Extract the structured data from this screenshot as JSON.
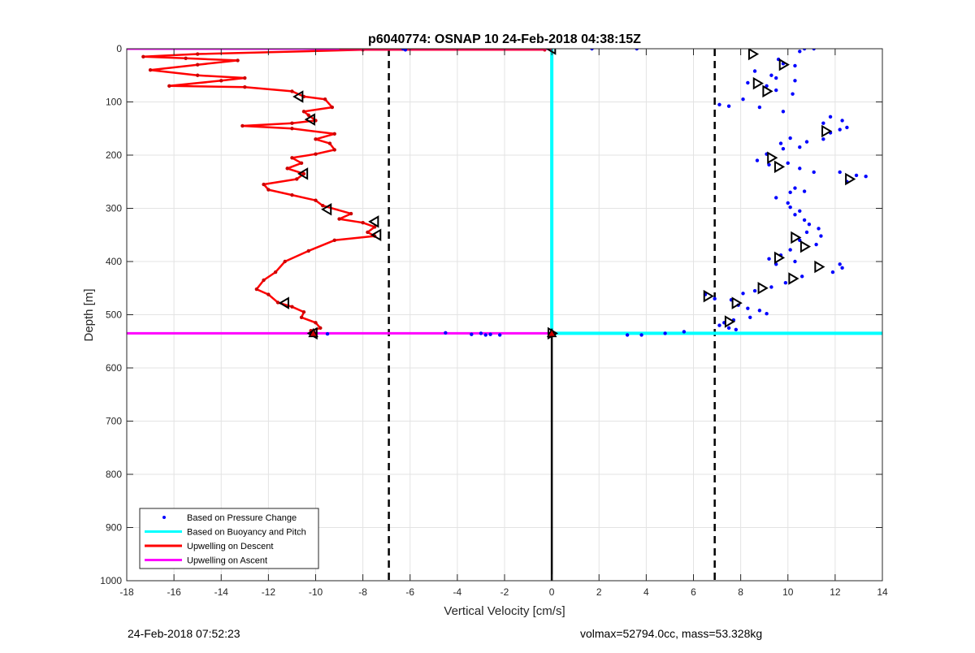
{
  "chart_data": {
    "type": "line",
    "title": "p6040774: OSNAP 10 24-Feb-2018 04:38:15Z",
    "xlabel": "Vertical Velocity [cm/s]",
    "ylabel": "Depth [m]",
    "xlim": [
      -18,
      14
    ],
    "ylim": [
      0,
      1000
    ],
    "y_reversed": true,
    "grid": true,
    "x_ticks": [
      -18,
      -16,
      -14,
      -12,
      -10,
      -8,
      -6,
      -4,
      -2,
      0,
      2,
      4,
      6,
      8,
      10,
      12,
      14
    ],
    "y_ticks": [
      0,
      100,
      200,
      300,
      400,
      500,
      600,
      700,
      800,
      900,
      1000
    ],
    "legend_placement": "bottom-left",
    "legend": [
      {
        "name": "Based on Pressure Change",
        "color": "#0000ff",
        "style": "dot"
      },
      {
        "name": "Based on Buoyancy and Pitch",
        "color": "#00ffff",
        "style": "line"
      },
      {
        "name": "Upwelling on Descent",
        "color": "#ff0000",
        "style": "line"
      },
      {
        "name": "Upwelling on Ascent",
        "color": "#ff00ff",
        "style": "line"
      }
    ],
    "reference_lines": {
      "dashed_x": [
        -6.9,
        6.9
      ],
      "zero_x": 0,
      "max_depth": 535
    },
    "upwelling_descent": {
      "color": "#ff0000",
      "points": [
        [
          -0.3,
          2
        ],
        [
          -8,
          2
        ],
        [
          -15,
          10
        ],
        [
          -17.3,
          15
        ],
        [
          -15.5,
          18
        ],
        [
          -13.3,
          22
        ],
        [
          -15,
          30
        ],
        [
          -17,
          40
        ],
        [
          -15,
          50
        ],
        [
          -13,
          55
        ],
        [
          -14,
          60
        ],
        [
          -16.2,
          70
        ],
        [
          -13,
          72
        ],
        [
          -11,
          80
        ],
        [
          -10.5,
          90
        ],
        [
          -9.6,
          95
        ],
        [
          -9.3,
          110
        ],
        [
          -10.5,
          118
        ],
        [
          -10.3,
          125
        ],
        [
          -10,
          135
        ],
        [
          -11,
          140
        ],
        [
          -13.1,
          145
        ],
        [
          -11,
          150
        ],
        [
          -9.2,
          160
        ],
        [
          -10,
          170
        ],
        [
          -9.4,
          178
        ],
        [
          -9.2,
          190
        ],
        [
          -10,
          198
        ],
        [
          -11,
          205
        ],
        [
          -10.6,
          215
        ],
        [
          -11.2,
          225
        ],
        [
          -10.5,
          235
        ],
        [
          -10.8,
          245
        ],
        [
          -12.2,
          255
        ],
        [
          -12,
          265
        ],
        [
          -11,
          275
        ],
        [
          -10,
          285
        ],
        [
          -9.7,
          295
        ],
        [
          -8.5,
          310
        ],
        [
          -9,
          320
        ],
        [
          -8,
          327
        ],
        [
          -7.5,
          335
        ],
        [
          -7.8,
          345
        ],
        [
          -7.5,
          352
        ],
        [
          -9.2,
          360
        ],
        [
          -10.3,
          380
        ],
        [
          -11.3,
          400
        ],
        [
          -11.7,
          420
        ],
        [
          -12.2,
          435
        ],
        [
          -12.5,
          452
        ],
        [
          -12,
          462
        ],
        [
          -11.6,
          477
        ],
        [
          -11,
          485
        ],
        [
          -10.5,
          495
        ],
        [
          -10.6,
          505
        ],
        [
          -10,
          515
        ],
        [
          -9.8,
          525
        ],
        [
          -10.2,
          530
        ],
        [
          -10,
          535
        ]
      ]
    },
    "upwelling_ascent": {
      "color": "#ff00ff",
      "segments": [
        [
          [
            -18,
            0
          ],
          [
            0,
            0
          ]
        ],
        [
          [
            -18,
            535
          ],
          [
            0,
            535
          ]
        ]
      ]
    },
    "buoyancy_pitch": {
      "color": "#00ffff",
      "segments": [
        [
          [
            0,
            0
          ],
          [
            0,
            535
          ]
        ],
        [
          [
            0,
            535
          ],
          [
            14,
            535
          ]
        ]
      ]
    },
    "descent_markers": [
      [
        0,
        0
      ],
      [
        -10.7,
        90
      ],
      [
        -10.2,
        133
      ],
      [
        -10.5,
        235
      ],
      [
        -9.5,
        302
      ],
      [
        -7.5,
        325
      ],
      [
        -7.4,
        350
      ],
      [
        -11.3,
        478
      ],
      [
        -10.1,
        535
      ]
    ],
    "ascent_markers": [
      [
        0,
        535
      ],
      [
        6.6,
        465
      ],
      [
        8.5,
        10
      ],
      [
        9.8,
        30
      ],
      [
        8.7,
        65
      ],
      [
        9.1,
        80
      ],
      [
        11.6,
        155
      ],
      [
        9.3,
        205
      ],
      [
        9.6,
        222
      ],
      [
        12.6,
        245
      ],
      [
        10.3,
        355
      ],
      [
        10.7,
        372
      ],
      [
        9.6,
        393
      ],
      [
        11.3,
        410
      ],
      [
        10.2,
        432
      ],
      [
        8.9,
        450
      ],
      [
        7.8,
        478
      ],
      [
        7.5,
        513
      ]
    ],
    "pressure_change_points": [
      [
        -6.3,
        0
      ],
      [
        -6.2,
        2
      ],
      [
        1.7,
        0
      ],
      [
        3.6,
        0
      ],
      [
        10.7,
        0
      ],
      [
        11.1,
        0
      ],
      [
        10.5,
        5
      ],
      [
        9.6,
        20
      ],
      [
        9.8,
        28
      ],
      [
        10.3,
        32
      ],
      [
        8.6,
        42
      ],
      [
        9.3,
        50
      ],
      [
        9.5,
        55
      ],
      [
        10.3,
        60
      ],
      [
        8.3,
        64
      ],
      [
        9.1,
        70
      ],
      [
        9.5,
        78
      ],
      [
        10.2,
        85
      ],
      [
        8.1,
        95
      ],
      [
        7.1,
        105
      ],
      [
        7.5,
        108
      ],
      [
        8.8,
        110
      ],
      [
        9.8,
        118
      ],
      [
        11.8,
        128
      ],
      [
        12.3,
        135
      ],
      [
        11.5,
        140
      ],
      [
        12.5,
        148
      ],
      [
        12.2,
        152
      ],
      [
        11.8,
        158
      ],
      [
        11.5,
        170
      ],
      [
        10.1,
        168
      ],
      [
        10.8,
        175
      ],
      [
        9.7,
        178
      ],
      [
        9.8,
        188
      ],
      [
        10.5,
        185
      ],
      [
        9.1,
        198
      ],
      [
        8.7,
        210
      ],
      [
        9.2,
        218
      ],
      [
        10,
        215
      ],
      [
        10.5,
        225
      ],
      [
        12.2,
        232
      ],
      [
        12.9,
        238
      ],
      [
        13.3,
        240
      ],
      [
        12.5,
        250
      ],
      [
        11.1,
        232
      ],
      [
        10.3,
        262
      ],
      [
        10.1,
        270
      ],
      [
        10.7,
        268
      ],
      [
        9.5,
        280
      ],
      [
        10,
        290
      ],
      [
        10.1,
        298
      ],
      [
        10.5,
        305
      ],
      [
        10.3,
        312
      ],
      [
        10.7,
        322
      ],
      [
        10.9,
        330
      ],
      [
        11.3,
        338
      ],
      [
        10.8,
        345
      ],
      [
        11.4,
        352
      ],
      [
        10.5,
        360
      ],
      [
        11.2,
        368
      ],
      [
        10.1,
        378
      ],
      [
        9.7,
        388
      ],
      [
        9.2,
        395
      ],
      [
        10.3,
        400
      ],
      [
        9.5,
        405
      ],
      [
        12.2,
        405
      ],
      [
        12.3,
        412
      ],
      [
        11.9,
        420
      ],
      [
        10.6,
        428
      ],
      [
        9.9,
        440
      ],
      [
        9.3,
        448
      ],
      [
        8.6,
        455
      ],
      [
        8.1,
        460
      ],
      [
        6.5,
        462
      ],
      [
        6.9,
        470
      ],
      [
        7.6,
        472
      ],
      [
        7.9,
        482
      ],
      [
        8.3,
        488
      ],
      [
        8.8,
        492
      ],
      [
        9.1,
        498
      ],
      [
        8.4,
        505
      ],
      [
        7.7,
        510
      ],
      [
        7.3,
        515
      ],
      [
        7.1,
        520
      ],
      [
        7.5,
        525
      ],
      [
        7.8,
        528
      ],
      [
        4.8,
        535
      ],
      [
        5.6,
        532
      ],
      [
        3.2,
        538
      ],
      [
        3.8,
        538
      ],
      [
        -3,
        535
      ],
      [
        -2.6,
        537
      ],
      [
        -2.2,
        538
      ],
      [
        -3.4,
        537
      ],
      [
        -2.8,
        538
      ],
      [
        -4.5,
        534
      ],
      [
        -9.5,
        536
      ]
    ]
  },
  "footer": {
    "left": "24-Feb-2018 07:52:23",
    "right": "volmax=52794.0cc, mass=53.328kg"
  }
}
